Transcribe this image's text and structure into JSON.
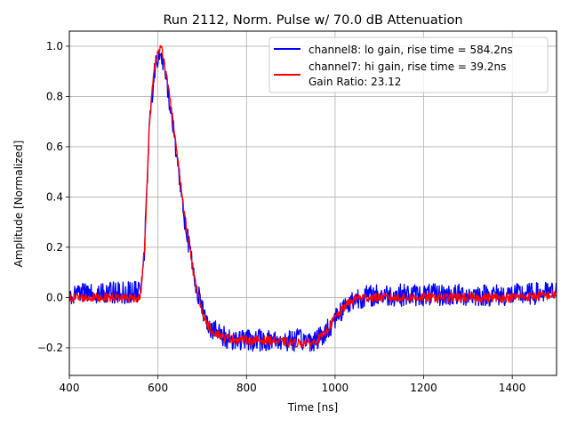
{
  "chart_data": {
    "type": "line",
    "title": "Run 2112, Norm. Pulse w/ 70.0 dB Attenuation",
    "xlabel": "Time [ns]",
    "ylabel": "Amplitude [Normalized]",
    "xlim": [
      400,
      1500
    ],
    "ylim": [
      -0.31,
      1.06
    ],
    "xticks": [
      400,
      600,
      800,
      1000,
      1200,
      1400
    ],
    "xtick_labels": [
      "400",
      "600",
      "800",
      "1000",
      "1200",
      "1400"
    ],
    "yticks": [
      -0.2,
      0.0,
      0.2,
      0.4,
      0.6,
      0.8,
      1.0
    ],
    "ytick_labels": [
      "−0.2",
      "0.0",
      "0.2",
      "0.4",
      "0.6",
      "0.8",
      "1.0"
    ],
    "grid": true,
    "legend_position": "top-right",
    "legend_extra_text": "Gain Ratio: 23.12",
    "series": [
      {
        "name": "channel8: lo gain, rise time = 584.2ns",
        "color": "#0000ff",
        "noise_amplitude": 0.045,
        "x": [
          400,
          560,
          570,
          580,
          590,
          600,
          607,
          615,
          625,
          640,
          660,
          680,
          700,
          720,
          750,
          800,
          850,
          900,
          950,
          975,
          1000,
          1025,
          1050,
          1100,
          1150,
          1200,
          1300,
          1400,
          1500
        ],
        "values": [
          0.02,
          0.02,
          0.2,
          0.65,
          0.88,
          0.95,
          0.97,
          0.9,
          0.8,
          0.6,
          0.32,
          0.1,
          -0.05,
          -0.12,
          -0.16,
          -0.17,
          -0.17,
          -0.17,
          -0.17,
          -0.15,
          -0.08,
          -0.03,
          0.0,
          0.01,
          0.01,
          0.01,
          0.01,
          0.01,
          0.02
        ]
      },
      {
        "name": "channel7: hi gain, rise time = 39.2ns",
        "color": "#ff0000",
        "noise_amplitude": 0.018,
        "x": [
          400,
          560,
          570,
          580,
          590,
          600,
          607,
          615,
          625,
          640,
          660,
          680,
          700,
          720,
          750,
          800,
          850,
          900,
          950,
          975,
          1000,
          1025,
          1050,
          1100,
          1150,
          1200,
          1300,
          1400,
          1500
        ],
        "values": [
          0.0,
          0.0,
          0.2,
          0.66,
          0.9,
          0.97,
          1.0,
          0.92,
          0.82,
          0.62,
          0.33,
          0.1,
          -0.06,
          -0.13,
          -0.16,
          -0.17,
          -0.17,
          -0.18,
          -0.18,
          -0.15,
          -0.08,
          -0.03,
          0.0,
          0.0,
          0.0,
          0.0,
          0.0,
          0.0,
          0.01
        ]
      }
    ]
  }
}
